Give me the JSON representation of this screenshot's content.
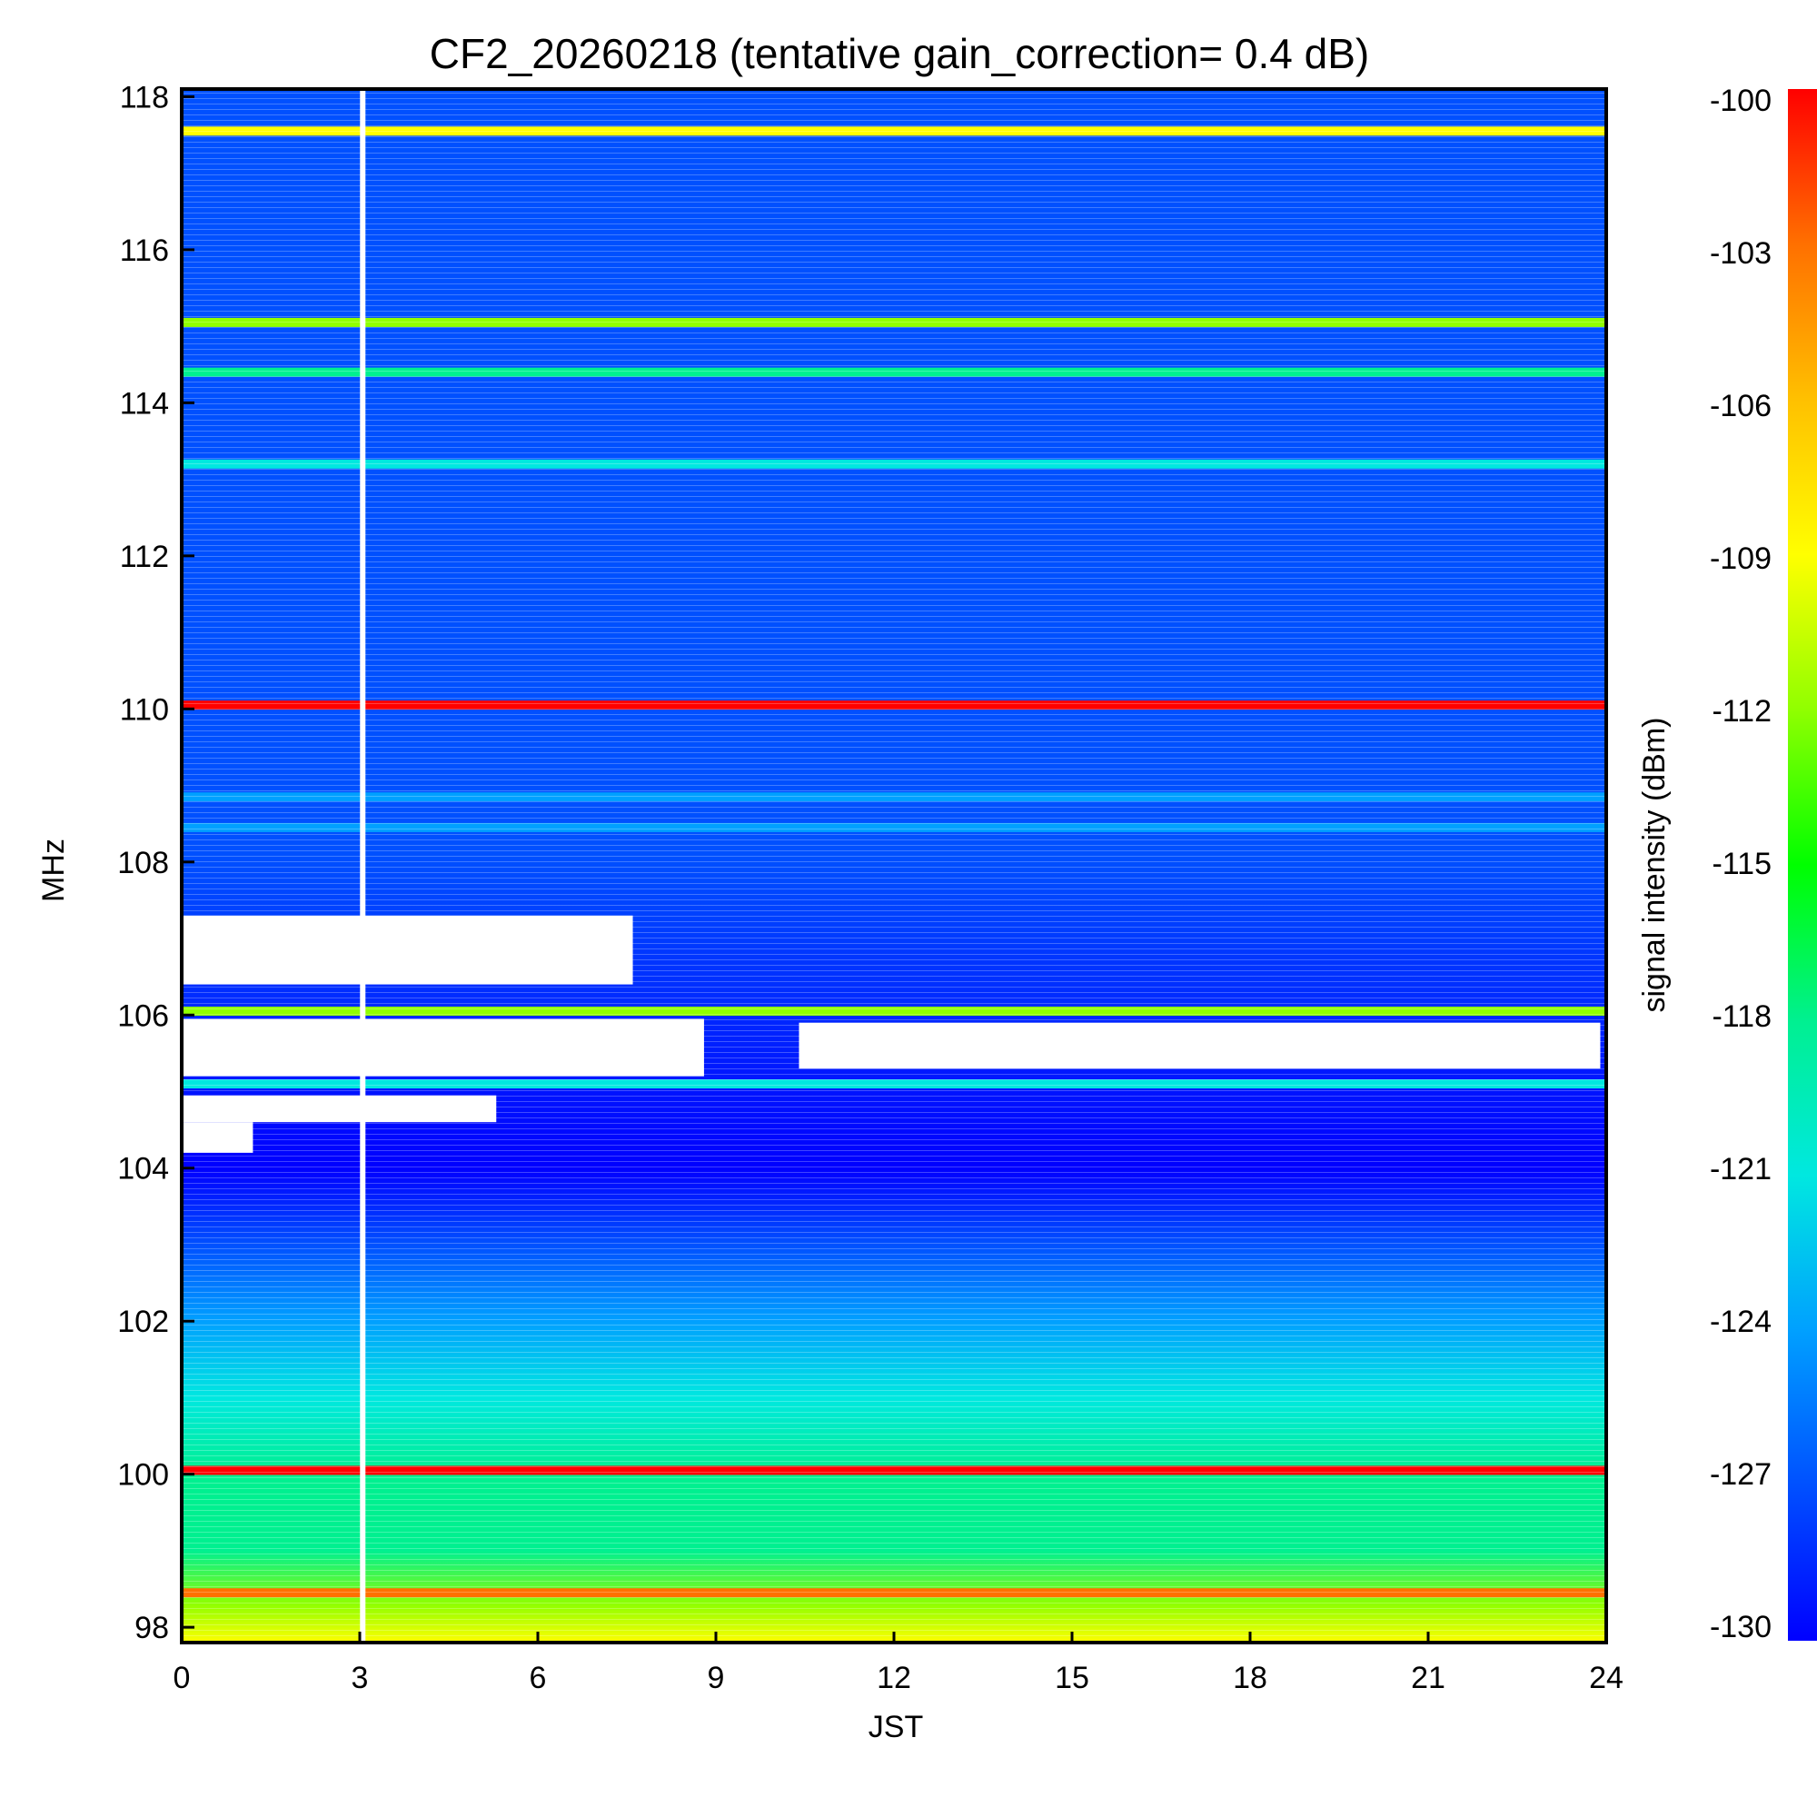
{
  "chart_data": {
    "type": "heatmap",
    "title": "CF2_20260218 (tentative gain_correction=  0.4 dB)",
    "xlabel": "JST",
    "ylabel": "MHz",
    "xlim": [
      0,
      24
    ],
    "ylim": [
      97.8,
      118.1
    ],
    "x_ticks": [
      "0",
      "3",
      "6",
      "9",
      "12",
      "15",
      "18",
      "21",
      "24"
    ],
    "y_ticks": [
      "98",
      "100",
      "102",
      "104",
      "106",
      "108",
      "110",
      "112",
      "114",
      "116",
      "118"
    ],
    "colorbar": {
      "label": "signal intensity (dBm)",
      "range": [
        -130,
        -100
      ],
      "ticks": [
        "-100",
        "-103",
        "-106",
        "-109",
        "-112",
        "-115",
        "-118",
        "-121",
        "-124",
        "-127",
        "-130"
      ],
      "colors": [
        "#0000ff",
        "#0050ff",
        "#00a0ff",
        "#00e8e0",
        "#00f090",
        "#00ff00",
        "#90ff00",
        "#ffff00",
        "#ffc000",
        "#ff7000",
        "#ff0000"
      ]
    },
    "background_gradient": [
      {
        "freq": 118,
        "dbm": -128
      },
      {
        "freq": 108.1,
        "dbm": -128
      },
      {
        "freq": 104,
        "dbm": -129
      },
      {
        "freq": 103,
        "dbm": -128
      },
      {
        "freq": 102,
        "dbm": -124.5
      },
      {
        "freq": 101,
        "dbm": -121.5
      },
      {
        "freq": 100,
        "dbm": -119.5
      },
      {
        "freq": 99,
        "dbm": -117.5
      },
      {
        "freq": 98.3,
        "dbm": -112
      },
      {
        "freq": 97.8,
        "dbm": -110
      }
    ],
    "strong_lines": [
      {
        "freq": 117.55,
        "dbm": -109
      },
      {
        "freq": 115.05,
        "dbm": -112
      },
      {
        "freq": 114.4,
        "dbm": -118
      },
      {
        "freq": 113.2,
        "dbm": -121
      },
      {
        "freq": 110.05,
        "dbm": -100
      },
      {
        "freq": 108.85,
        "dbm": -123
      },
      {
        "freq": 108.45,
        "dbm": -123
      },
      {
        "freq": 106.05,
        "dbm": -112
      },
      {
        "freq": 105.1,
        "dbm": -121
      },
      {
        "freq": 100.05,
        "dbm": -100
      },
      {
        "freq": 98.45,
        "dbm": -102
      }
    ],
    "no_data_regions": [
      {
        "freq_range": [
          106.4,
          107.3
        ],
        "jst_range": [
          0,
          7.6
        ]
      },
      {
        "freq_range": [
          105.2,
          105.95
        ],
        "jst_range": [
          0,
          8.8
        ]
      },
      {
        "freq_range": [
          104.6,
          104.95
        ],
        "jst_range": [
          0,
          5.3
        ]
      },
      {
        "freq_range": [
          105.3,
          105.9
        ],
        "jst_range": [
          10.4,
          23.9
        ]
      },
      {
        "freq_range": [
          104.2,
          104.6
        ],
        "jst_range": [
          0,
          1.2
        ]
      }
    ],
    "gap_time_jst": 3.05
  }
}
